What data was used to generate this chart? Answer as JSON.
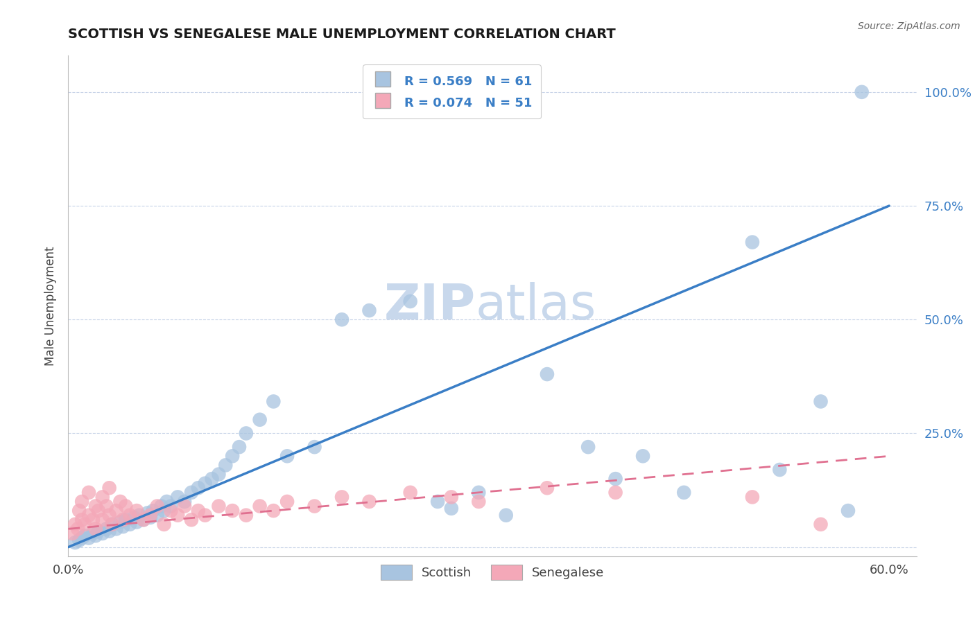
{
  "title": "SCOTTISH VS SENEGALESE MALE UNEMPLOYMENT CORRELATION CHART",
  "source": "Source: ZipAtlas.com",
  "ylabel": "Male Unemployment",
  "xlim": [
    0.0,
    0.62
  ],
  "ylim": [
    -0.02,
    1.08
  ],
  "yticks": [
    0.0,
    0.25,
    0.5,
    0.75,
    1.0
  ],
  "ytick_labels": [
    "",
    "25.0%",
    "50.0%",
    "75.0%",
    "100.0%"
  ],
  "xticks": [
    0.0,
    0.1,
    0.2,
    0.3,
    0.4,
    0.5,
    0.6
  ],
  "xtick_labels": [
    "0.0%",
    "",
    "",
    "",
    "",
    "",
    "60.0%"
  ],
  "legend_r1": "R = 0.569",
  "legend_n1": "N = 61",
  "legend_r2": "R = 0.074",
  "legend_n2": "N = 51",
  "scottish_color": "#A8C4E0",
  "senegalese_color": "#F4A8B8",
  "regression_blue": "#3A7EC6",
  "regression_pink": "#E07090",
  "background_color": "#FFFFFF",
  "grid_color": "#C8D4E8",
  "title_color": "#1A1A1A",
  "source_color": "#666666",
  "legend_value_color": "#3A7EC6",
  "scottish_x": [
    0.005,
    0.008,
    0.01,
    0.012,
    0.015,
    0.018,
    0.02,
    0.022,
    0.025,
    0.028,
    0.03,
    0.032,
    0.035,
    0.038,
    0.04,
    0.042,
    0.045,
    0.048,
    0.05,
    0.052,
    0.055,
    0.058,
    0.06,
    0.062,
    0.065,
    0.068,
    0.07,
    0.072,
    0.075,
    0.08,
    0.085,
    0.09,
    0.095,
    0.1,
    0.105,
    0.11,
    0.115,
    0.12,
    0.125,
    0.13,
    0.14,
    0.15,
    0.16,
    0.18,
    0.2,
    0.22,
    0.25,
    0.27,
    0.28,
    0.3,
    0.32,
    0.35,
    0.38,
    0.4,
    0.42,
    0.45,
    0.5,
    0.52,
    0.55,
    0.57,
    0.58
  ],
  "scottish_y": [
    0.01,
    0.015,
    0.02,
    0.025,
    0.02,
    0.03,
    0.025,
    0.035,
    0.03,
    0.04,
    0.035,
    0.05,
    0.04,
    0.055,
    0.045,
    0.06,
    0.05,
    0.065,
    0.055,
    0.07,
    0.06,
    0.075,
    0.065,
    0.08,
    0.07,
    0.09,
    0.08,
    0.1,
    0.09,
    0.11,
    0.1,
    0.12,
    0.13,
    0.14,
    0.15,
    0.16,
    0.18,
    0.2,
    0.22,
    0.25,
    0.28,
    0.32,
    0.2,
    0.22,
    0.5,
    0.52,
    0.54,
    0.1,
    0.085,
    0.12,
    0.07,
    0.38,
    0.22,
    0.15,
    0.2,
    0.12,
    0.67,
    0.17,
    0.32,
    0.08,
    1.0
  ],
  "senegalese_x": [
    0.003,
    0.005,
    0.007,
    0.008,
    0.01,
    0.01,
    0.012,
    0.015,
    0.015,
    0.018,
    0.02,
    0.02,
    0.022,
    0.025,
    0.025,
    0.028,
    0.03,
    0.03,
    0.032,
    0.035,
    0.038,
    0.04,
    0.042,
    0.045,
    0.05,
    0.055,
    0.06,
    0.065,
    0.07,
    0.075,
    0.08,
    0.085,
    0.09,
    0.095,
    0.1,
    0.11,
    0.12,
    0.13,
    0.14,
    0.15,
    0.16,
    0.18,
    0.2,
    0.22,
    0.25,
    0.28,
    0.3,
    0.35,
    0.4,
    0.5,
    0.55
  ],
  "senegalese_y": [
    0.03,
    0.05,
    0.04,
    0.08,
    0.06,
    0.1,
    0.05,
    0.07,
    0.12,
    0.06,
    0.09,
    0.04,
    0.08,
    0.11,
    0.06,
    0.09,
    0.07,
    0.13,
    0.05,
    0.08,
    0.1,
    0.06,
    0.09,
    0.07,
    0.08,
    0.06,
    0.07,
    0.09,
    0.05,
    0.08,
    0.07,
    0.09,
    0.06,
    0.08,
    0.07,
    0.09,
    0.08,
    0.07,
    0.09,
    0.08,
    0.1,
    0.09,
    0.11,
    0.1,
    0.12,
    0.11,
    0.1,
    0.13,
    0.12,
    0.11,
    0.05
  ],
  "blue_line_x": [
    0.0,
    0.6
  ],
  "blue_line_y": [
    0.0,
    0.75
  ],
  "pink_line_x": [
    0.0,
    0.6
  ],
  "pink_line_y": [
    0.04,
    0.2
  ],
  "watermark_text1": "ZIP",
  "watermark_text2": "atlas",
  "watermark_color": "#C8D8EC"
}
